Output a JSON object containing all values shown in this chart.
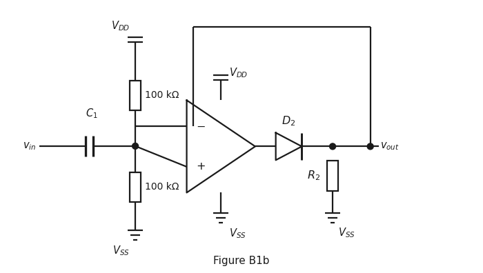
{
  "bg_color": "#ffffff",
  "line_color": "#1a1a1a",
  "line_width": 1.6,
  "fig_title": "Figure B1b",
  "title_fontsize": 11,
  "labels": {
    "VDD_left": "$V_{DD}$",
    "VSS_left": "$V_{SS}$",
    "C1": "$C_1$",
    "Vin": "$v_{in}$",
    "R_top": "100 kΩ",
    "R_bot": "100 kΩ",
    "VDD_op": "$V_{DD}$",
    "VSS_op": "$V_{SS}$",
    "D2": "$D_2$",
    "R2": "$R_2$",
    "VSS_right": "$V_{SS}$",
    "Vout": "$v_{out}$"
  },
  "label_fontsize": 10.5
}
